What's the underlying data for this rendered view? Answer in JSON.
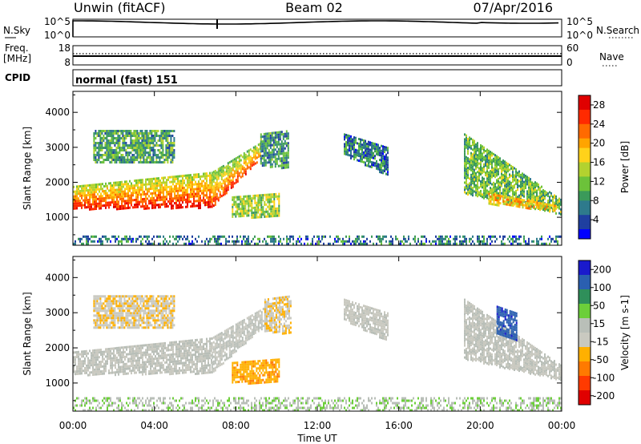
{
  "header": {
    "station": "Unwin (fitACF)",
    "beam": "Beam 02",
    "date": "07/Apr/2016"
  },
  "nsky_panel": {
    "left_label": "N.Sky",
    "left_ticks": [
      "10^5",
      "10^0"
    ],
    "right_label": "N.Search",
    "right_ticks": [
      "10^5",
      "10^0"
    ]
  },
  "freq_panel": {
    "left_label_line1": "Freq.",
    "left_label_line2": "[MHz]",
    "left_ticks": [
      "18",
      "8"
    ],
    "right_label": "Nave",
    "right_ticks": [
      "60",
      "0"
    ]
  },
  "cpid_panel": {
    "label": "CPID",
    "text": "normal (fast) 151"
  },
  "colors": {
    "background": "#ffffff",
    "power_scale": [
      "#0000ff",
      "#1f3fa0",
      "#2e7a8c",
      "#3b9a5a",
      "#6cc23a",
      "#b3d22f",
      "#ffd21a",
      "#ffa400",
      "#ff6a00",
      "#ff2a00",
      "#e00000"
    ],
    "velocity_scale": [
      "#1a1acc",
      "#2a5fb0",
      "#2f8f5a",
      "#6ccf3a",
      "#b9bfb8",
      "#c9c9c0",
      "#ffb000",
      "#ff7a00",
      "#ff3a00",
      "#e00000"
    ]
  },
  "chart_data": [
    {
      "type": "heatmap",
      "name": "power",
      "ylabel": "Slant Range [km]",
      "xlabel": "Time UT",
      "x_ticks": [
        "00:00",
        "04:00",
        "08:00",
        "12:00",
        "16:00",
        "20:00",
        "00:00"
      ],
      "y_ticks": [
        1000,
        2000,
        3000,
        4000
      ],
      "ylim": [
        200,
        4600
      ],
      "xlim_hours": [
        0,
        24
      ],
      "colorbar": {
        "label": "Power [dB]",
        "ticks": [
          "4",
          "8",
          "12",
          "16",
          "20",
          "24",
          "28"
        ],
        "range": [
          0,
          30
        ]
      },
      "regions": [
        {
          "t0": 0.0,
          "t1": 6.8,
          "r_low_start": 1250,
          "r_low_end": 1300,
          "r_high_start": 1900,
          "r_high_end": 2300,
          "level": 22
        },
        {
          "t0": 6.8,
          "t1": 9.2,
          "r_low_start": 1300,
          "r_low_end": 2700,
          "r_high_start": 2300,
          "r_high_end": 3150,
          "level": 20
        },
        {
          "t0": 7.8,
          "t1": 10.1,
          "r_low_start": 1000,
          "r_low_end": 1050,
          "r_high_start": 1600,
          "r_high_end": 1700,
          "level": 14
        },
        {
          "t0": 9.2,
          "t1": 10.6,
          "r_low_start": 2500,
          "r_low_end": 2400,
          "r_high_start": 3400,
          "r_high_end": 3500,
          "level": 9
        },
        {
          "t0": 1.0,
          "t1": 5.0,
          "r_low_start": 2600,
          "r_low_end": 2600,
          "r_high_start": 3500,
          "r_high_end": 3500,
          "level": 10
        },
        {
          "t0": 13.3,
          "t1": 15.5,
          "r_low_start": 2800,
          "r_low_end": 2200,
          "r_high_start": 3400,
          "r_high_end": 3000,
          "level": 7
        },
        {
          "t0": 19.2,
          "t1": 24.0,
          "r_low_start": 1700,
          "r_low_end": 1100,
          "r_high_start": 3400,
          "r_high_end": 1500,
          "level": 12
        },
        {
          "t0": 20.4,
          "t1": 23.7,
          "r_low_start": 1400,
          "r_low_end": 1200,
          "r_high_start": 1700,
          "r_high_end": 1350,
          "level": 19
        },
        {
          "t0": 0.0,
          "t1": 24.0,
          "r_low_start": 250,
          "r_low_end": 250,
          "r_high_start": 480,
          "r_high_end": 480,
          "level": 7
        }
      ]
    },
    {
      "type": "heatmap",
      "name": "velocity",
      "ylabel": "Slant Range [km]",
      "xlabel": "Time UT",
      "x_ticks": [
        "00:00",
        "04:00",
        "08:00",
        "12:00",
        "16:00",
        "20:00",
        "00:00"
      ],
      "y_ticks": [
        1000,
        2000,
        3000,
        4000
      ],
      "ylim": [
        200,
        4600
      ],
      "xlim_hours": [
        0,
        24
      ],
      "colorbar": {
        "label": "Velocity [m s-1]",
        "ticks": [
          "200",
          "100",
          "50",
          "15",
          "-15",
          "-50",
          "-100",
          "-200"
        ],
        "range": [
          -250,
          250
        ]
      },
      "regions": [
        {
          "t0": 0.0,
          "t1": 6.8,
          "r_low_start": 1250,
          "r_low_end": 1300,
          "r_high_start": 1900,
          "r_high_end": 2300,
          "level": 0
        },
        {
          "t0": 6.8,
          "t1": 9.5,
          "r_low_start": 1300,
          "r_low_end": 2700,
          "r_high_start": 2300,
          "r_high_end": 3200,
          "level": 0
        },
        {
          "t0": 7.8,
          "t1": 10.1,
          "r_low_start": 1000,
          "r_low_end": 1050,
          "r_high_start": 1600,
          "r_high_end": 1700,
          "level": -80
        },
        {
          "t0": 9.4,
          "t1": 10.7,
          "r_low_start": 2500,
          "r_low_end": 2400,
          "r_high_start": 3400,
          "r_high_end": 3500,
          "level": -40
        },
        {
          "t0": 1.0,
          "t1": 5.0,
          "r_low_start": 2600,
          "r_low_end": 2600,
          "r_high_start": 3500,
          "r_high_end": 3500,
          "level": -40
        },
        {
          "t0": 13.3,
          "t1": 15.5,
          "r_low_start": 2800,
          "r_low_end": 2200,
          "r_high_start": 3400,
          "r_high_end": 3000,
          "level": -10
        },
        {
          "t0": 19.2,
          "t1": 24.0,
          "r_low_start": 1700,
          "r_low_end": 1100,
          "r_high_start": 3400,
          "r_high_end": 1500,
          "level": 0
        },
        {
          "t0": 20.8,
          "t1": 21.8,
          "r_low_start": 2400,
          "r_low_end": 2200,
          "r_high_start": 3200,
          "r_high_end": 3000,
          "level": 180
        },
        {
          "t0": 0.0,
          "t1": 24.0,
          "r_low_start": 250,
          "r_low_end": 250,
          "r_high_start": 600,
          "r_high_end": 600,
          "level": 40
        }
      ]
    }
  ]
}
